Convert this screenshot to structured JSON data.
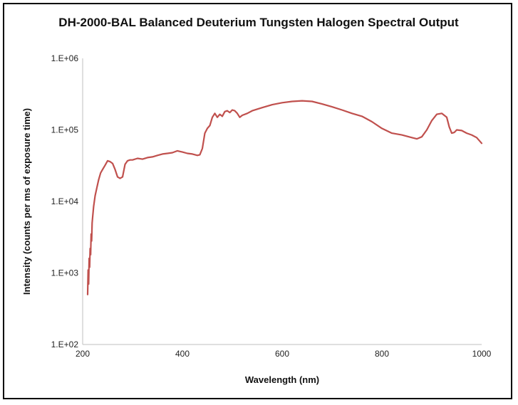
{
  "chart_data": {
    "type": "line",
    "title": "DH-2000-BAL Balanced Deuterium Tungsten Halogen Spectral Output",
    "xlabel": "Wavelength (nm)",
    "ylabel": "Intensity (counts per ms of exposure time)",
    "xlim": [
      200,
      1000
    ],
    "ylim": [
      100,
      1000000
    ],
    "yscale": "log",
    "x_ticks": [
      200,
      400,
      600,
      800,
      1000
    ],
    "x_tick_labels": [
      "200",
      "400",
      "600",
      "800",
      "1000"
    ],
    "y_ticks": [
      100,
      1000,
      10000,
      100000,
      1000000
    ],
    "y_tick_labels": [
      "1.E+02",
      "1.E+03",
      "1.E+04",
      "1.E+05",
      "1.E+06"
    ],
    "grid": false,
    "legend": "none",
    "line_color": "#c0504d",
    "series": [
      {
        "x": [
          210,
          211,
          212,
          213,
          214,
          215,
          216,
          217,
          218,
          219,
          220,
          222,
          225,
          228,
          232,
          236,
          240,
          245,
          250,
          255,
          260,
          265,
          270,
          275,
          280,
          285,
          290,
          295,
          300,
          310,
          320,
          330,
          340,
          350,
          360,
          370,
          380,
          390,
          400,
          410,
          420,
          430,
          435,
          440,
          445,
          450,
          455,
          460,
          465,
          470,
          475,
          480,
          485,
          490,
          495,
          500,
          505,
          510,
          515,
          520,
          530,
          540,
          560,
          580,
          600,
          620,
          640,
          660,
          680,
          700,
          720,
          740,
          760,
          780,
          800,
          820,
          840,
          860,
          870,
          880,
          890,
          900,
          910,
          920,
          930,
          935,
          940,
          945,
          950,
          960,
          970,
          980,
          990,
          1000
        ],
        "y": [
          500,
          1100,
          700,
          1600,
          1200,
          2200,
          1800,
          3500,
          2800,
          5000,
          6000,
          8500,
          12000,
          15000,
          20000,
          25000,
          28000,
          32000,
          37000,
          36000,
          34000,
          28000,
          22000,
          21000,
          22000,
          33000,
          37000,
          38000,
          38000,
          40000,
          39000,
          41000,
          42000,
          44000,
          46000,
          47000,
          48000,
          51000,
          49000,
          47000,
          46000,
          44000,
          45000,
          55000,
          90000,
          105000,
          115000,
          150000,
          170000,
          150000,
          165000,
          155000,
          180000,
          185000,
          175000,
          190000,
          185000,
          170000,
          150000,
          160000,
          170000,
          185000,
          205000,
          225000,
          240000,
          250000,
          255000,
          250000,
          230000,
          210000,
          190000,
          170000,
          155000,
          130000,
          105000,
          90000,
          85000,
          78000,
          75000,
          80000,
          100000,
          135000,
          165000,
          170000,
          150000,
          110000,
          90000,
          92000,
          100000,
          98000,
          90000,
          85000,
          78000,
          65000
        ]
      }
    ]
  }
}
